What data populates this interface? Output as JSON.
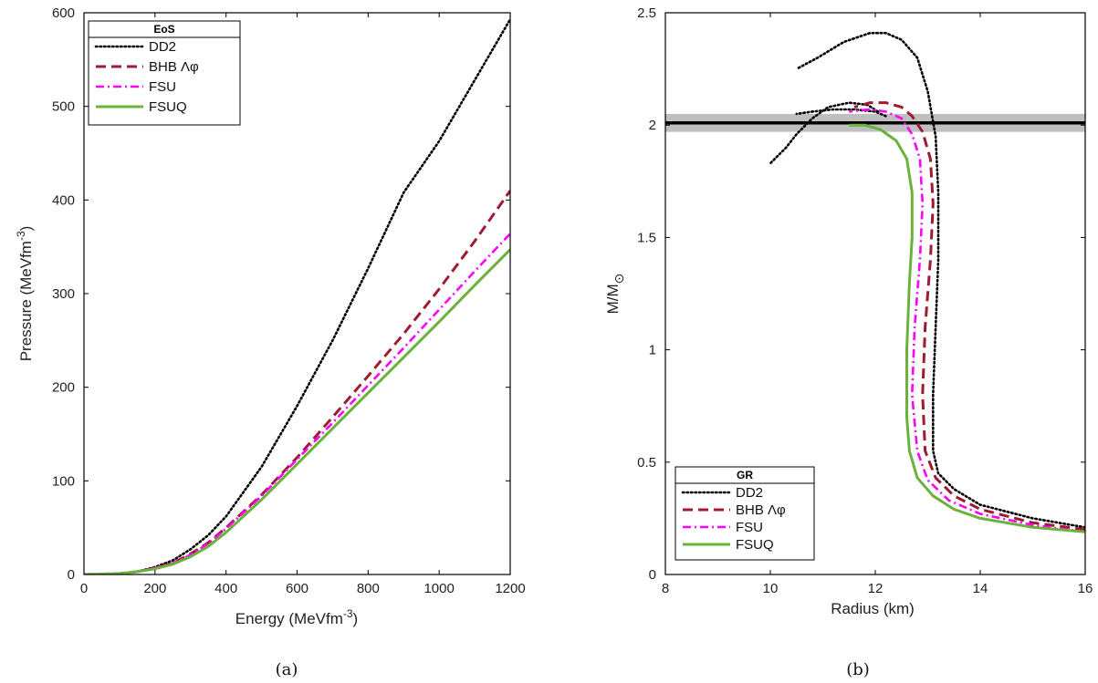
{
  "chart_data": [
    {
      "type": "line",
      "caption": "(a)",
      "xlabel": "Energy (MeVfm",
      "xlabel_sup": "-3",
      "xlabel_end": ")",
      "ylabel": "Pressure (MeVfm",
      "ylabel_sup": "-3",
      "ylabel_end": ")",
      "xlim": [
        0,
        1200
      ],
      "ylim": [
        0,
        600
      ],
      "xticks": [
        0,
        200,
        400,
        600,
        800,
        1000,
        1200
      ],
      "yticks": [
        0,
        100,
        200,
        300,
        400,
        500,
        600
      ],
      "grid": false,
      "legend": {
        "title": "EoS",
        "placement": "top-left"
      },
      "series": [
        {
          "name": "DD2",
          "color": "#000000",
          "style": "dotted",
          "x": [
            0,
            100,
            150,
            200,
            250,
            300,
            350,
            400,
            500,
            600,
            700,
            800,
            900,
            1000,
            1100,
            1200
          ],
          "y": [
            0,
            1,
            3,
            8,
            15,
            27,
            42,
            62,
            115,
            180,
            250,
            327,
            408,
            463,
            528,
            593
          ]
        },
        {
          "name": "BHB Λφ",
          "color": "#9e1b32",
          "style": "dashed",
          "x": [
            0,
            100,
            150,
            200,
            250,
            300,
            350,
            400,
            500,
            600,
            700,
            800,
            900,
            1000,
            1100,
            1200
          ],
          "y": [
            0,
            1,
            3,
            7,
            12,
            22,
            34,
            50,
            85,
            125,
            168,
            212,
            257,
            305,
            356,
            410
          ]
        },
        {
          "name": "FSU",
          "color": "#ff00ff",
          "style": "dashdot",
          "x": [
            0,
            100,
            150,
            200,
            250,
            300,
            350,
            400,
            500,
            600,
            700,
            800,
            900,
            1000,
            1100,
            1200
          ],
          "y": [
            0,
            1,
            3,
            7,
            12,
            21,
            33,
            49,
            84,
            123,
            162,
            202,
            242,
            283,
            324,
            364
          ]
        },
        {
          "name": "FSUQ",
          "color": "#6ab23c",
          "style": "solid",
          "x": [
            0,
            100,
            150,
            200,
            250,
            300,
            350,
            400,
            500,
            600,
            700,
            800,
            900,
            1000,
            1100,
            1200
          ],
          "y": [
            0,
            1,
            3,
            6,
            11,
            19,
            30,
            45,
            80,
            118,
            156,
            194,
            232,
            270,
            309,
            347
          ]
        }
      ]
    },
    {
      "type": "line",
      "caption": "(b)",
      "xlabel": "Radius (km)",
      "ylabel": "M/M",
      "ylabel_sub": "⊙",
      "xlim": [
        8,
        16
      ],
      "ylim": [
        0,
        2.5
      ],
      "xticks": [
        8,
        10,
        12,
        14,
        16
      ],
      "yticks": [
        0,
        0.5,
        1,
        1.5,
        2,
        2.5
      ],
      "grid": false,
      "band": {
        "y": 2.01,
        "ymin": 1.97,
        "ymax": 2.05,
        "color": "#bfbfbf"
      },
      "legend": {
        "title": "GR",
        "placement": "bottom-left"
      },
      "series": [
        {
          "name": "DD2",
          "color": "#000000",
          "style": "dotted",
          "x": [
            16,
            15,
            14,
            13.5,
            13.2,
            13.1,
            13.1,
            13.15,
            13.2,
            13.2,
            13.15,
            13.0,
            12.8,
            12.5,
            12.2,
            11.9,
            11.4,
            10.9,
            10.5
          ],
          "y": [
            0.21,
            0.25,
            0.31,
            0.38,
            0.45,
            0.55,
            0.8,
            1.1,
            1.4,
            1.7,
            1.95,
            2.15,
            2.3,
            2.38,
            2.41,
            2.41,
            2.37,
            2.3,
            2.25
          ]
        },
        {
          "name": "",
          "color": "#000000",
          "style": "dotted",
          "x": [
            12.05,
            11.85,
            11.5,
            11.1,
            10.8,
            10.5,
            10.3,
            10.0
          ],
          "y": [
            2.06,
            2.09,
            2.1,
            2.08,
            2.03,
            1.96,
            1.9,
            1.83
          ]
        },
        {
          "name": "",
          "color": "#000000",
          "style": "dotted",
          "x": [
            12.2,
            12.0,
            11.6,
            11.2,
            10.8,
            10.5
          ],
          "y": [
            2.04,
            2.06,
            2.07,
            2.07,
            2.06,
            2.05
          ]
        },
        {
          "name": "BHB Λφ",
          "color": "#9e1b32",
          "style": "dashed",
          "x": [
            16,
            15,
            14,
            13.5,
            13.15,
            12.95,
            12.9,
            12.95,
            13.05,
            13.1,
            13.05,
            12.9,
            12.7,
            12.5,
            12.2,
            11.9,
            11.6
          ],
          "y": [
            0.2,
            0.23,
            0.29,
            0.35,
            0.43,
            0.55,
            0.8,
            1.1,
            1.4,
            1.65,
            1.85,
            1.97,
            2.04,
            2.08,
            2.1,
            2.1,
            2.08
          ]
        },
        {
          "name": "FSU",
          "color": "#ff00ff",
          "style": "dashdot",
          "x": [
            16,
            15,
            14,
            13.4,
            13.0,
            12.8,
            12.7,
            12.75,
            12.85,
            12.9,
            12.85,
            12.7,
            12.5,
            12.2,
            11.9,
            11.5
          ],
          "y": [
            0.19,
            0.22,
            0.27,
            0.33,
            0.42,
            0.55,
            0.8,
            1.1,
            1.4,
            1.65,
            1.85,
            1.96,
            2.03,
            2.06,
            2.07,
            2.06
          ]
        },
        {
          "name": "FSUQ",
          "color": "#6ab23c",
          "style": "solid",
          "x": [
            16,
            15,
            14,
            13.5,
            13.1,
            12.8,
            12.65,
            12.6,
            12.6,
            12.65,
            12.7,
            12.7,
            12.6,
            12.4,
            12.1,
            11.8,
            11.5
          ],
          "y": [
            0.19,
            0.21,
            0.25,
            0.29,
            0.35,
            0.43,
            0.55,
            0.7,
            1.0,
            1.3,
            1.5,
            1.7,
            1.85,
            1.93,
            1.98,
            2.0,
            2.0
          ]
        }
      ]
    }
  ]
}
